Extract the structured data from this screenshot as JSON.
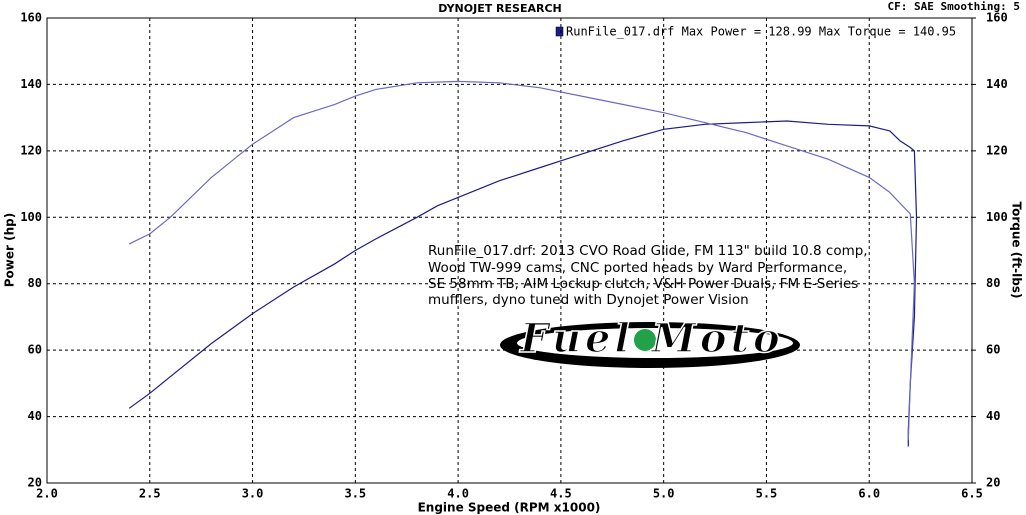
{
  "chart_data": {
    "type": "line",
    "title": "DYNOJET RESEARCH",
    "subtitle": "CF: SAE  Smoothing: 5",
    "legend_text": "RunFile_017.drf Max Power = 128.99    Max Torque = 140.95",
    "annotation": [
      "RunFile_017.drf: 2013 CVO Road Glide, FM 113\" build 10.8 comp,",
      "Wood TW-999 cams, CNC ported heads by Ward Performance,",
      "SE 58mm TB, AIM Lockup clutch, V&H Power Duals, FM E-Series",
      "mufflers, dyno tuned with Dynojet Power Vision"
    ],
    "logo_text": "Fuel Moto",
    "x_label": "Engine Speed (RPM x1000)",
    "y_label": "Power (hp)",
    "y2_label": "Torque (ft-lbs)",
    "xlim": [
      2.0,
      6.5
    ],
    "xticks": [
      {
        "value": 2,
        "label": "2.0"
      },
      {
        "value": 2.5,
        "label": "2.5"
      },
      {
        "value": 3,
        "label": "3.0"
      },
      {
        "value": 3.5,
        "label": "3.5"
      },
      {
        "value": 4,
        "label": "4.0"
      },
      {
        "value": 4.5,
        "label": "4.5"
      },
      {
        "value": 5,
        "label": "5.0"
      },
      {
        "value": 5.5,
        "label": "5.5"
      },
      {
        "value": 6,
        "label": "6.0"
      },
      {
        "value": 6.5,
        "label": "6.5"
      }
    ],
    "ylim": [
      20,
      160
    ],
    "yticks": [
      20,
      40,
      60,
      80,
      100,
      120,
      140,
      160
    ],
    "y2lim": [
      20,
      160
    ],
    "y2ticks": [
      20,
      40,
      60,
      80,
      100,
      120,
      140,
      160
    ],
    "grid": true,
    "series": [
      {
        "name": "Power",
        "color": "#1c1c8a",
        "x": [
          2.4,
          2.5,
          2.6,
          2.8,
          3.0,
          3.2,
          3.4,
          3.5,
          3.6,
          3.8,
          3.9,
          4.0,
          4.2,
          4.4,
          4.5,
          4.6,
          4.8,
          5.0,
          5.2,
          5.4,
          5.6,
          5.8,
          6.0,
          6.1,
          6.15,
          6.2,
          6.22,
          6.23,
          6.22,
          6.2,
          6.19,
          6.19
        ],
        "values": [
          42.5,
          47,
          52,
          62,
          71,
          79,
          86,
          90,
          93.5,
          100,
          103.5,
          106,
          111,
          115,
          117,
          119,
          123,
          126.5,
          128,
          128.5,
          129,
          128,
          127.5,
          126,
          123,
          121,
          120,
          100,
          70,
          50,
          36,
          31
        ]
      },
      {
        "name": "Torque",
        "color": "#6a6ac8",
        "axis": "y2",
        "x": [
          2.4,
          2.5,
          2.6,
          2.8,
          3.0,
          3.2,
          3.4,
          3.5,
          3.6,
          3.8,
          4.0,
          4.2,
          4.4,
          4.6,
          4.8,
          5.0,
          5.2,
          5.4,
          5.6,
          5.8,
          6.0,
          6.1,
          6.2,
          6.22,
          6.2,
          6.19
        ],
        "values": [
          92,
          95,
          100,
          112,
          122,
          130,
          134,
          136.5,
          138.5,
          140.5,
          140.9,
          140.5,
          139,
          136.5,
          134,
          131.5,
          128.5,
          125.5,
          121.5,
          117.5,
          112,
          107.5,
          101,
          80,
          50,
          33
        ]
      }
    ]
  }
}
